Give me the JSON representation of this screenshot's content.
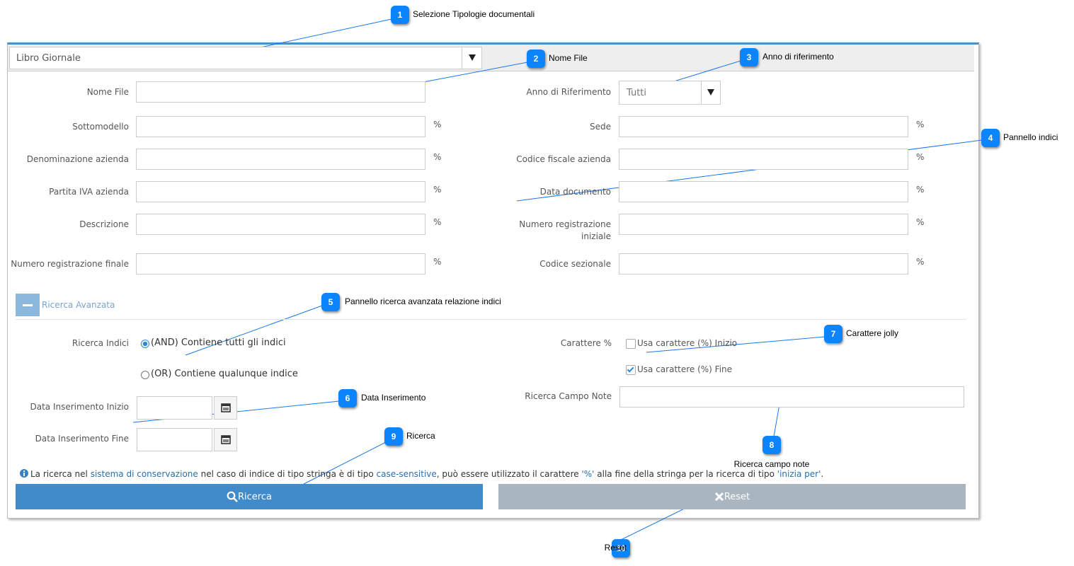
{
  "callouts": [
    {
      "number": "1",
      "label": "Selezione Tipologie documentali"
    },
    {
      "number": "2",
      "label": "Nome File"
    },
    {
      "number": "3",
      "label": "Anno di riferimento"
    },
    {
      "number": "4",
      "label": "Pannello indici"
    },
    {
      "number": "5",
      "label": "Pannello ricerca avanzata relazione indici"
    },
    {
      "number": "6",
      "label": "Data Inserimento"
    },
    {
      "number": "7",
      "label": "Carattere jolly"
    },
    {
      "number": "8",
      "label": "Ricerca campo note"
    },
    {
      "number": "9",
      "label": "Ricerca"
    },
    {
      "number": "10",
      "label": "Reset"
    }
  ],
  "form": {
    "document_type": "Libro Giornale",
    "year_label": "Anno di Riferimento",
    "year_value": "Tutti",
    "left_fields": [
      {
        "label": "Nome File"
      },
      {
        "label": "Sottomodello",
        "suffix": "%"
      },
      {
        "label": "Denominazione azienda",
        "suffix": "%"
      },
      {
        "label": "Partita IVA azienda",
        "suffix": "%"
      },
      {
        "label": "Descrizione",
        "suffix": "%"
      },
      {
        "label": "Numero registrazione finale",
        "suffix": "%"
      }
    ],
    "right_fields": [
      {
        "label": "Sede",
        "suffix": "%"
      },
      {
        "label": "Codice fiscale azienda",
        "suffix": "%"
      },
      {
        "label": "Data documento",
        "suffix": "%"
      },
      {
        "label": "Numero registrazione iniziale",
        "suffix": "%"
      },
      {
        "label": "Codice sezionale",
        "suffix": "%"
      }
    ]
  },
  "advanced": {
    "toggle": "Ricerca Avanzata",
    "index_label": "Ricerca Indici",
    "options": [
      "(AND) Contiene tutti gli indici",
      "(OR) Contiene qualunque indice"
    ],
    "wildcard_label": "Carattere %",
    "checkboxes": [
      "Usa carattere (%) Inizio",
      "Usa carattere (%) Fine"
    ],
    "notes_label": "Ricerca Campo Note",
    "date_start": "Data Inserimento Inizio",
    "date_end": "Data Inserimento Fine"
  },
  "info": [
    "La ricerca nel ",
    "sistema di conservazione",
    " nel caso di indice di tipo stringa è di tipo ",
    "case-sensitive",
    ", può essere utilizzato il carattere ",
    "'%'",
    " alla fine della stringa per la ricerca di tipo ",
    "'inizia per'",
    "."
  ],
  "buttons": {
    "search": "Ricerca",
    "reset": "Reset"
  }
}
